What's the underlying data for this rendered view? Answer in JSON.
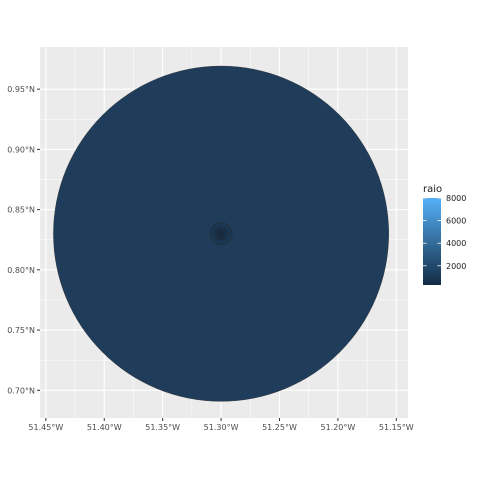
{
  "map": {
    "x_ticks": [
      "51.45°W",
      "51.40°W",
      "51.35°W",
      "51.30°W",
      "51.25°W",
      "51.20°W",
      "51.15°W"
    ],
    "y_ticks": [
      "0.95°N",
      "0.90°N",
      "0.85°N",
      "0.80°N",
      "0.75°N",
      "0.70°N"
    ],
    "x_tick_values": [
      -51.45,
      -51.4,
      -51.35,
      -51.3,
      -51.25,
      -51.2,
      -51.15
    ],
    "y_tick_values": [
      0.95,
      0.9,
      0.85,
      0.8,
      0.75,
      0.7
    ],
    "xlim": [
      -51.455,
      -51.14
    ],
    "ylim": [
      0.677,
      0.985
    ],
    "center": {
      "lon": -51.3,
      "lat": 0.83
    },
    "buffers": [
      {
        "radius_deg": 0.1435,
        "raio": 8000
      },
      {
        "radius_deg": 0.0095,
        "raio": 1000
      },
      {
        "radius_deg": 0.0055,
        "raio": 600
      },
      {
        "radius_deg": 0.0025,
        "raio": 300
      }
    ],
    "panel_background": "#ebebeb",
    "grid_color": "#ffffff"
  },
  "legend": {
    "title": "raio",
    "labels": [
      "8000",
      "6000",
      "4000",
      "2000"
    ],
    "label_values": [
      8000,
      6000,
      4000,
      2000
    ],
    "range": [
      300,
      8000
    ],
    "color_low": "#132b43",
    "color_high": "#56b1f7"
  }
}
